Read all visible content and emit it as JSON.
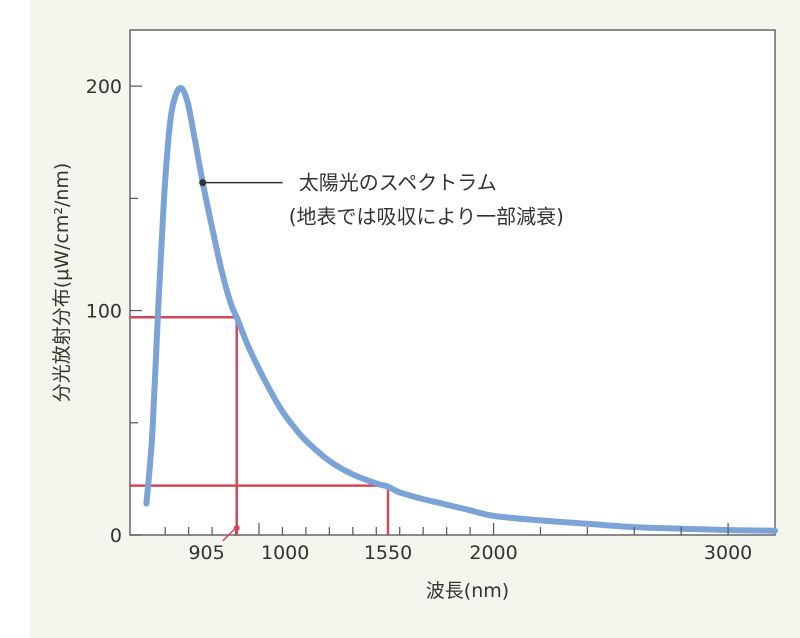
{
  "chart_data": {
    "type": "line",
    "xlabel": "波長(nm)",
    "ylabel": "分光放射分布(μW/cm²/nm)",
    "xlim": [
      450,
      3200
    ],
    "ylim": [
      0,
      225
    ],
    "x_ticks": [
      {
        "value": 905,
        "label": "905",
        "highlight": true
      },
      {
        "value": 1000,
        "label": "1000",
        "highlight": false
      },
      {
        "value": 1550,
        "label": "1550",
        "highlight": true
      },
      {
        "value": 2000,
        "label": "2000",
        "highlight": false
      },
      {
        "value": 3000,
        "label": "3000",
        "highlight": false
      }
    ],
    "x_minor_ticks": [
      600,
      700,
      800,
      900,
      1100,
      1200,
      1300,
      1400,
      1500,
      1600,
      1700,
      1800,
      1900,
      2200,
      2400,
      2600,
      2800
    ],
    "y_ticks": [
      {
        "value": 0,
        "label": "0"
      },
      {
        "value": 100,
        "label": "100"
      },
      {
        "value": 200,
        "label": "200"
      }
    ],
    "y_minor_ticks": [
      50,
      150
    ],
    "series": [
      {
        "color": "#7ba3d6",
        "points": [
          [
            520,
            14
          ],
          [
            545,
            45
          ],
          [
            570,
            100
          ],
          [
            595,
            150
          ],
          [
            620,
            183
          ],
          [
            645,
            196
          ],
          [
            670,
            199
          ],
          [
            695,
            193
          ],
          [
            720,
            180
          ],
          [
            760,
            157
          ],
          [
            800,
            137
          ],
          [
            840,
            118
          ],
          [
            880,
            103
          ],
          [
            905,
            97
          ],
          [
            950,
            85
          ],
          [
            1000,
            74
          ],
          [
            1050,
            64
          ],
          [
            1100,
            55
          ],
          [
            1150,
            48
          ],
          [
            1200,
            42
          ],
          [
            1300,
            33
          ],
          [
            1400,
            27
          ],
          [
            1500,
            23
          ],
          [
            1550,
            21.5
          ],
          [
            1600,
            19
          ],
          [
            1700,
            16
          ],
          [
            1800,
            13.5
          ],
          [
            1900,
            11
          ],
          [
            2000,
            8.5
          ],
          [
            2200,
            6.5
          ],
          [
            2400,
            5
          ],
          [
            2600,
            3.5
          ],
          [
            2800,
            2.8
          ],
          [
            3000,
            2.2
          ],
          [
            3200,
            1.9
          ]
        ]
      }
    ],
    "reference_lines": [
      {
        "x": 905,
        "y": 97,
        "color": "#d2485a"
      },
      {
        "x": 1550,
        "y": 22,
        "color": "#d2485a"
      }
    ],
    "annotation": {
      "lines": [
        "太陽光のスペクトラム",
        "(地表では吸収により一部減衰)"
      ],
      "point": [
        760,
        157
      ]
    },
    "grid": false,
    "highlight_color": "#d2485a"
  }
}
